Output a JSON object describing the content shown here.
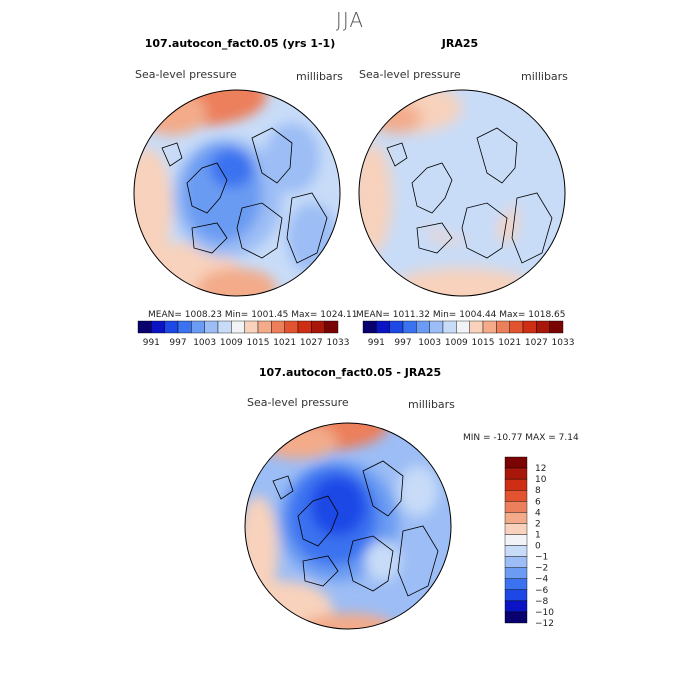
{
  "title": "JJA",
  "colors": {
    "scale": [
      "#08016e",
      "#0a14c4",
      "#1e48e6",
      "#3a72f0",
      "#6b9bf2",
      "#9cbdf5",
      "#c8dcf8",
      "#f1f3f7",
      "#f8d2bc",
      "#f3ab8a",
      "#ec7f5c",
      "#e2532f",
      "#cd2e14",
      "#a9170a",
      "#7a0304"
    ],
    "diff_scale": [
      "#08016e",
      "#0a14c4",
      "#1e48e6",
      "#3a72f0",
      "#6b9bf2",
      "#9cbdf5",
      "#c8dcf8",
      "#f1f3f7",
      "#f8d2bc",
      "#f3ab8a",
      "#ec7f5c",
      "#e2532f",
      "#cd2e14",
      "#a9170a",
      "#7a0304"
    ]
  },
  "panels": {
    "model": {
      "title": "107.autocon_fact0.05 (yrs 1-1)",
      "field": "Sea-level pressure",
      "units": "millibars",
      "stats": "MEAN= 1008.23   Min= 1001.45   Max= 1024.11"
    },
    "obs": {
      "title": "JRA25",
      "field": "Sea-level pressure",
      "units": "millibars",
      "stats": "MEAN= 1011.32   Min= 1004.44   Max= 1018.65"
    },
    "diff": {
      "title": "107.autocon_fact0.05 - JRA25",
      "field": "Sea-level pressure",
      "units": "millibars",
      "stats": "MIN = -10.77  MAX =    7.14"
    }
  },
  "chart_data": [
    {
      "type": "heatmap",
      "title": "107.autocon_fact0.05 (yrs 1-1)",
      "subtitle": "Sea-level pressure",
      "units": "millibars",
      "projection": "polar stereographic (north)",
      "mean": 1008.23,
      "min": 1001.45,
      "max": 1024.11,
      "colorbar_levels": [
        991,
        997,
        1003,
        1009,
        1015,
        1021,
        1027,
        1033
      ],
      "colorbar_ticks": [
        "991",
        "997",
        "1003",
        "1009",
        "1015",
        "1021",
        "1027",
        "1033"
      ]
    },
    {
      "type": "heatmap",
      "title": "JRA25",
      "subtitle": "Sea-level pressure",
      "units": "millibars",
      "projection": "polar stereographic (north)",
      "mean": 1011.32,
      "min": 1004.44,
      "max": 1018.65,
      "colorbar_levels": [
        991,
        997,
        1003,
        1009,
        1015,
        1021,
        1027,
        1033
      ],
      "colorbar_ticks": [
        "991",
        "997",
        "1003",
        "1009",
        "1015",
        "1021",
        "1027",
        "1033"
      ]
    },
    {
      "type": "heatmap",
      "title": "107.autocon_fact0.05 - JRA25",
      "subtitle": "Sea-level pressure",
      "units": "millibars",
      "projection": "polar stereographic (north)",
      "min": -10.77,
      "max": 7.14,
      "colorbar_levels": [
        -12,
        -10,
        -8,
        -6,
        -4,
        -2,
        -1,
        0,
        1,
        2,
        4,
        6,
        8,
        10,
        12
      ],
      "colorbar_ticks": [
        "12",
        "10",
        "8",
        "6",
        "4",
        "2",
        "1",
        "0",
        "−1",
        "−2",
        "−4",
        "−6",
        "−8",
        "−10",
        "−12"
      ]
    }
  ]
}
